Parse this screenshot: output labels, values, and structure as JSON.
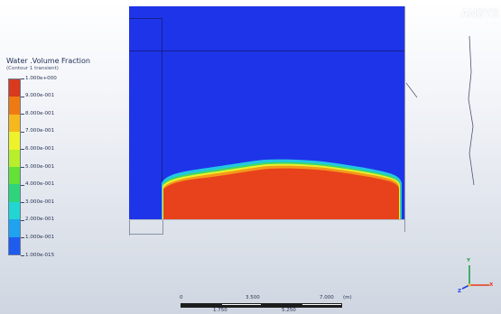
{
  "brand": {
    "logo_text": "ANSYS"
  },
  "contour_legend": {
    "title": "Water .Volume Fraction",
    "subtitle": "(Contour 1 transient)",
    "levels": [
      "1.000e+000",
      "9.000e-001",
      "8.000e-001",
      "7.000e-001",
      "6.000e-001",
      "5.000e-001",
      "4.000e-001",
      "3.000e-001",
      "2.000e-001",
      "1.000e-001",
      "1.000e-015"
    ],
    "colors": [
      "#d9391c",
      "#f07a12",
      "#f6b81c",
      "#eef22a",
      "#b8ef2a",
      "#63e136",
      "#2fd47b",
      "#22d6d2",
      "#1fa2ef",
      "#1e5cf0"
    ]
  },
  "domain": {
    "air_color": "#1e34e8",
    "water_color": "#e8421d"
  },
  "scale_bar": {
    "top_labels": [
      "0",
      "3.500",
      "7.000",
      "(m)"
    ],
    "bottom_labels": [
      "1.750",
      "5.250"
    ],
    "colors": [
      "#1d1d1d",
      "#ffffff"
    ]
  },
  "triad": {
    "labels": {
      "x": "X",
      "y": "Y",
      "z": "Z"
    },
    "colors": {
      "x": "#1fa34a",
      "y": "#e33b1f",
      "z": "#1f3ce8"
    }
  }
}
